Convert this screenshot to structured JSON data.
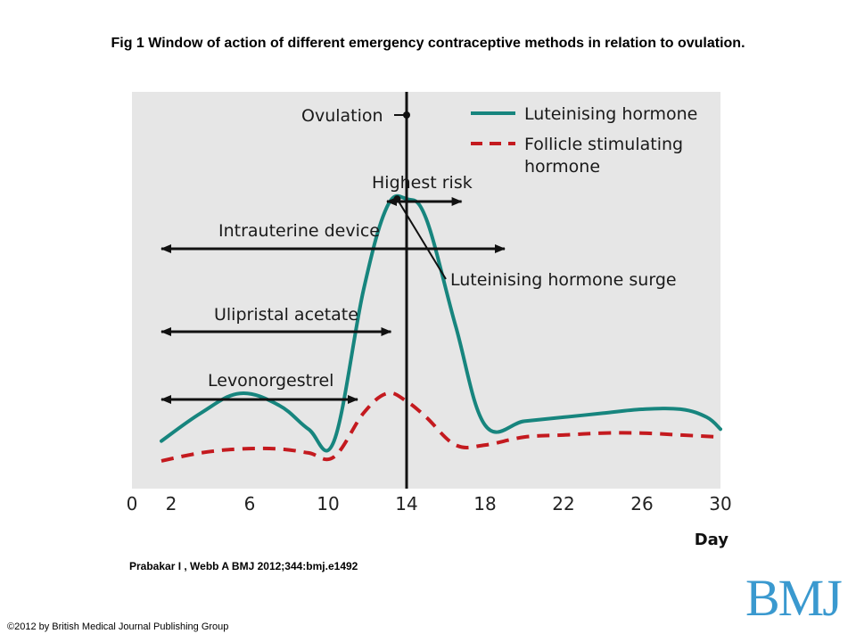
{
  "slide": {
    "title": "Fig 1 Window of action of different emergency contraceptive methods in relation to ovulation.",
    "citation": "Prabakar I , Webb A BMJ 2012;344:bmj.e1492",
    "copyright": "©2012 by British Medical Journal Publishing Group",
    "logo": "BMJ"
  },
  "colors": {
    "plot_bg": "#e6e6e6",
    "lh": "#17857e",
    "fsh": "#c41a1f",
    "axis": "#111111",
    "arrow": "#111111"
  },
  "chart_data": {
    "type": "line",
    "title": "",
    "xlabel": "Day",
    "ylabel": "",
    "xlim": [
      0,
      30
    ],
    "ylim": [
      0,
      100
    ],
    "xticks": [
      0,
      2,
      6,
      10,
      14,
      18,
      22,
      26,
      30
    ],
    "grid": false,
    "legend_position": "top-right",
    "series": [
      {
        "name": "Luteinising hormone",
        "style": "solid",
        "x": [
          1.5,
          3.5,
          5.5,
          7.5,
          9.0,
          10.3,
          11.8,
          13.0,
          14.0,
          15.0,
          16.5,
          18.0,
          20,
          22,
          24,
          26,
          28,
          29.3,
          30.0
        ],
        "y": [
          12,
          19,
          24,
          21,
          15,
          12,
          50,
          71,
          73,
          68,
          41,
          16,
          17,
          18,
          19,
          20,
          20,
          18,
          15
        ]
      },
      {
        "name": "Follicle stimulating hormone",
        "style": "dashed",
        "x": [
          1.5,
          3.5,
          5.5,
          7.5,
          9.0,
          10.3,
          11.8,
          13.0,
          14.0,
          15.0,
          16.5,
          18.0,
          20,
          22,
          24,
          26,
          28,
          30
        ],
        "y": [
          7,
          9,
          10,
          10,
          9,
          8,
          19,
          24,
          22,
          18,
          11,
          11,
          13,
          13.5,
          14,
          14,
          13.5,
          13
        ]
      }
    ],
    "legend": [
      "Luteinising hormone",
      "Follicle stimulating hormone"
    ],
    "legend_lines": [
      [
        "Luteinising hormone"
      ],
      [
        "Follicle stimulating",
        "hormone"
      ]
    ],
    "annotations": {
      "ovulation": {
        "label": "Ovulation",
        "day": 14
      },
      "lh_surge": {
        "label": "Luteinising hormone surge",
        "day": 13.7,
        "value": 73
      },
      "windows": [
        {
          "label": "Highest risk",
          "from_day": 13,
          "to_day": 16.8
        },
        {
          "label": "Intrauterine device",
          "from_day": 1.5,
          "to_day": 19
        },
        {
          "label": "Ulipristal acetate",
          "from_day": 1.5,
          "to_day": 13.2
        },
        {
          "label": "Levonorgestrel",
          "from_day": 1.5,
          "to_day": 11.5
        }
      ]
    }
  }
}
